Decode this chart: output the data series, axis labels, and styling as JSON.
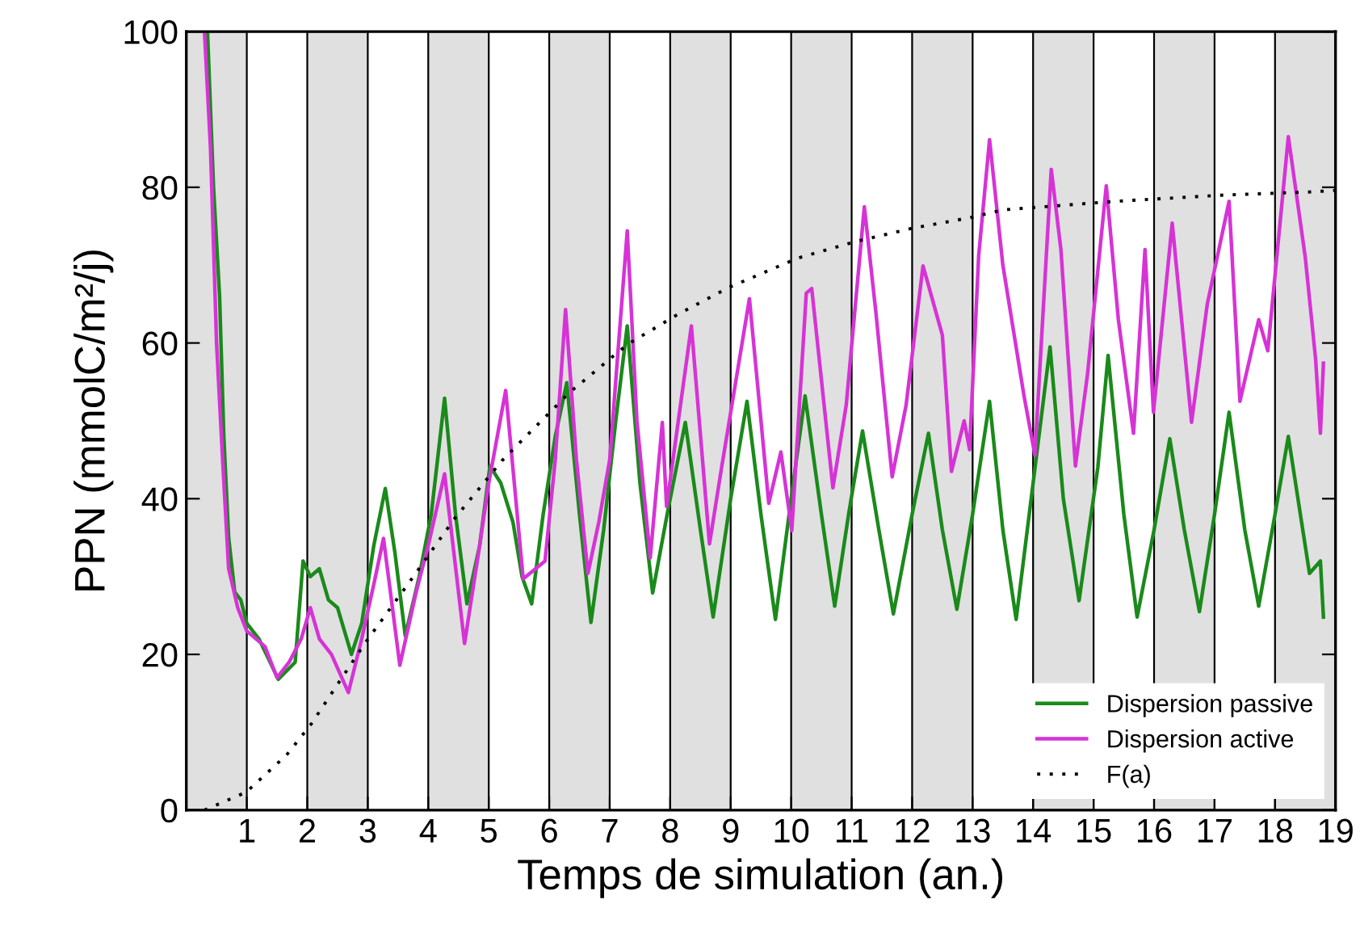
{
  "chart_data": {
    "type": "line",
    "xlabel": "Temps de simulation (an.)",
    "ylabel": "PPN (mmolC/m²/j)",
    "xlim": [
      0,
      19
    ],
    "xticks": [
      1,
      2,
      3,
      4,
      5,
      6,
      7,
      8,
      9,
      10,
      11,
      12,
      13,
      14,
      15,
      16,
      17,
      18,
      19
    ],
    "ylim": [
      0,
      100
    ],
    "yticks": [
      0,
      20,
      40,
      60,
      80,
      100
    ],
    "grid": false,
    "legend": "bottom right",
    "tick_labels": "xy",
    "bands": [
      {
        "axis": "x",
        "from": 0,
        "to": 1,
        "color": "#e0e0e0"
      },
      {
        "axis": "x",
        "from": 2,
        "to": 3,
        "color": "#e0e0e0"
      },
      {
        "axis": "x",
        "from": 4,
        "to": 5,
        "color": "#e0e0e0"
      },
      {
        "axis": "x",
        "from": 6,
        "to": 7,
        "color": "#e0e0e0"
      },
      {
        "axis": "x",
        "from": 8,
        "to": 9,
        "color": "#e0e0e0"
      },
      {
        "axis": "x",
        "from": 10,
        "to": 11,
        "color": "#e0e0e0"
      },
      {
        "axis": "x",
        "from": 12,
        "to": 13,
        "color": "#e0e0e0"
      },
      {
        "axis": "x",
        "from": 14,
        "to": 15,
        "color": "#e0e0e0"
      },
      {
        "axis": "x",
        "from": 16,
        "to": 17,
        "color": "#e0e0e0"
      },
      {
        "axis": "x",
        "from": 18,
        "to": 19,
        "color": "#e0e0e0"
      }
    ],
    "series": [
      {
        "name": "Dispersion passive",
        "color": "#1a8a1a",
        "line_style": "solid",
        "x": [
          0.35,
          0.45,
          0.55,
          0.62,
          0.7,
          0.8,
          0.9,
          1.0,
          1.2,
          1.52,
          1.8,
          1.93,
          2.05,
          2.2,
          2.35,
          2.5,
          2.73,
          2.9,
          3.1,
          3.29,
          3.45,
          3.62,
          3.85,
          4.05,
          4.27,
          4.45,
          4.64,
          4.85,
          5.02,
          5.2,
          5.4,
          5.55,
          5.71,
          5.9,
          6.1,
          6.29,
          6.5,
          6.69,
          6.9,
          7.1,
          7.29,
          7.5,
          7.71,
          7.95,
          8.25,
          8.5,
          8.71,
          9.0,
          9.27,
          9.5,
          9.74,
          10.0,
          10.23,
          10.5,
          10.72,
          10.95,
          11.18,
          11.45,
          11.69,
          12.0,
          12.27,
          12.5,
          12.74,
          13.0,
          13.28,
          13.5,
          13.72,
          14.0,
          14.28,
          14.5,
          14.76,
          15.07,
          15.24,
          15.5,
          15.72,
          16.0,
          16.26,
          16.5,
          16.75,
          17.0,
          17.24,
          17.5,
          17.73,
          18.0,
          18.22,
          18.57,
          18.75,
          18.8
        ],
        "values": [
          100,
          80,
          66,
          48,
          35,
          28,
          27,
          24,
          22,
          16.8,
          19,
          32,
          30,
          31,
          27,
          26,
          20,
          24,
          34,
          41.3,
          33,
          22.4,
          30,
          38,
          52.9,
          38,
          26.5,
          34,
          44.2,
          42,
          37,
          30,
          26.5,
          38,
          48,
          54.9,
          38,
          24.1,
          36,
          50,
          62.2,
          42,
          27.9,
          38,
          49.8,
          36,
          24.8,
          40,
          52.5,
          38,
          24.5,
          40,
          53.2,
          38,
          26.2,
          38,
          48.7,
          36,
          25.2,
          38,
          48.4,
          36,
          25.8,
          38,
          52.5,
          36,
          24.5,
          42,
          59.5,
          40,
          26.9,
          44,
          58.4,
          38,
          24.8,
          36,
          47.7,
          36,
          25.5,
          38,
          51.1,
          36,
          26.2,
          38,
          48,
          30.4,
          32,
          24.8
        ]
      },
      {
        "name": "Dispersion active",
        "color": "#d633d6",
        "line_style": "solid",
        "x": [
          0.3,
          0.4,
          0.5,
          0.6,
          0.7,
          0.85,
          1.0,
          1.3,
          1.5,
          1.7,
          1.9,
          2.05,
          2.2,
          2.4,
          2.68,
          2.9,
          3.1,
          3.26,
          3.53,
          3.8,
          4.0,
          4.27,
          4.6,
          4.85,
          5.0,
          5.28,
          5.57,
          5.93,
          6.1,
          6.27,
          6.45,
          6.64,
          6.82,
          7.0,
          7.29,
          7.45,
          7.67,
          7.87,
          7.94,
          8.35,
          8.65,
          8.85,
          9.31,
          9.63,
          9.83,
          10.01,
          10.25,
          10.34,
          10.69,
          10.91,
          11.21,
          11.4,
          11.67,
          11.9,
          12.18,
          12.5,
          12.65,
          12.86,
          12.95,
          13.1,
          13.28,
          13.5,
          13.85,
          14.03,
          14.3,
          14.46,
          14.7,
          14.9,
          15.21,
          15.41,
          15.66,
          15.85,
          15.99,
          16.3,
          16.62,
          16.88,
          17.24,
          17.42,
          17.73,
          17.88,
          18.22,
          18.5,
          18.67,
          18.75,
          18.8
        ],
        "values": [
          100,
          85,
          60,
          45,
          31,
          26,
          23,
          21,
          17,
          19,
          22,
          26,
          22,
          20,
          15.1,
          22,
          29,
          34.9,
          18.6,
          28,
          34,
          43.2,
          21.4,
          34,
          42,
          53.9,
          29.7,
          32,
          45,
          64.3,
          45,
          30.4,
          37,
          45,
          74.4,
          50,
          32.4,
          49.8,
          39,
          62.2,
          34.2,
          44,
          65.7,
          39.4,
          46,
          35.9,
          66.4,
          67,
          41.4,
          52,
          77.5,
          64,
          42.8,
          52,
          69.9,
          61,
          43.5,
          50,
          46.3,
          71.2,
          86.1,
          70,
          53.2,
          45.6,
          82.3,
          72,
          44.2,
          56,
          80.2,
          63,
          48.4,
          72,
          51.1,
          75.4,
          49.8,
          65,
          78.2,
          52.5,
          63,
          59,
          86.5,
          71,
          58,
          48.4,
          57.4
        ]
      },
      {
        "name": "F(a)",
        "color": "#000000",
        "line_style": "dotted",
        "x": [
          0.3,
          0.99,
          1.66,
          2.06,
          2.59,
          2.95,
          3.69,
          4.42,
          5.22,
          6.33,
          7.29,
          8.11,
          8.96,
          10.11,
          11.05,
          11.98,
          12.96,
          13.5,
          15.37,
          17.15,
          18.57,
          19
        ],
        "values": [
          0,
          2.3,
          7.1,
          11,
          17.2,
          21.4,
          29.3,
          37.3,
          44.9,
          53.6,
          59.8,
          63.6,
          67.1,
          70.9,
          73,
          74.7,
          76.1,
          77.1,
          78.2,
          79,
          79.4,
          79.6
        ]
      }
    ]
  }
}
